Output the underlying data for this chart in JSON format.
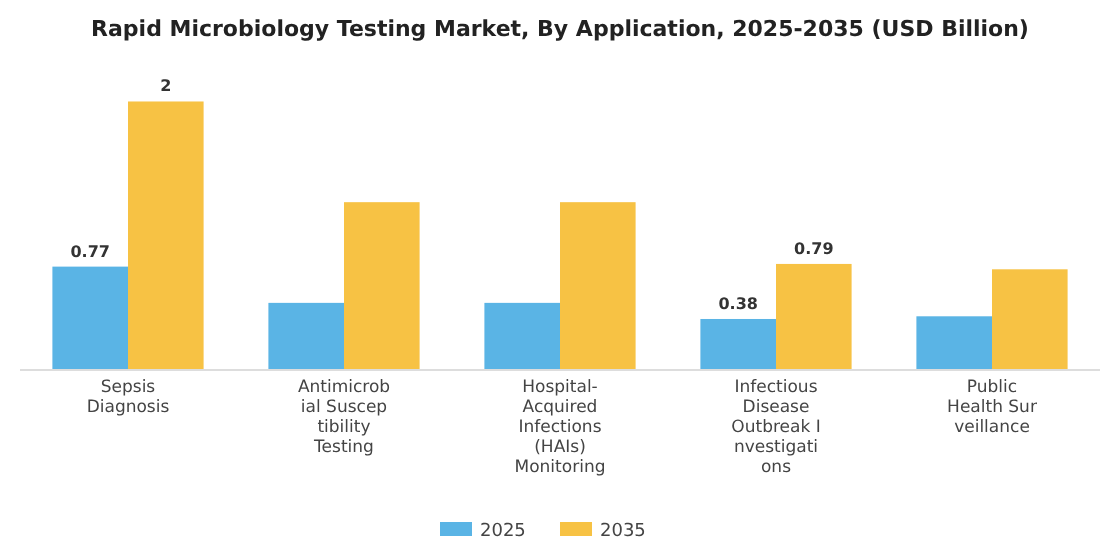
{
  "chart_data": {
    "type": "bar",
    "title": "Rapid Microbiology Testing Market, By Application, 2025-2035 (USD Billion)",
    "categories": [
      "Sepsis\nDiagnosis",
      "Antimicrob\nial Suscep\ntibility\nTesting",
      "Hospital-\nAcquired\nInfections\n(HAIs)\nMonitoring",
      "Infectious\nDisease\nOutbreak I\nnvestigati\nons",
      "Public\nHealth Sur\nveillance"
    ],
    "series": [
      {
        "name": "2025",
        "color": "#5ab4e5",
        "values": [
          0.77,
          0.5,
          0.5,
          0.38,
          0.4
        ],
        "value_labels": [
          "0.77",
          null,
          null,
          "0.38",
          null
        ]
      },
      {
        "name": "2035",
        "color": "#f7c244",
        "values": [
          2,
          1.25,
          1.25,
          0.79,
          0.75
        ],
        "value_labels": [
          "2",
          null,
          null,
          "0.79",
          null
        ]
      }
    ],
    "legend": "bottom"
  }
}
